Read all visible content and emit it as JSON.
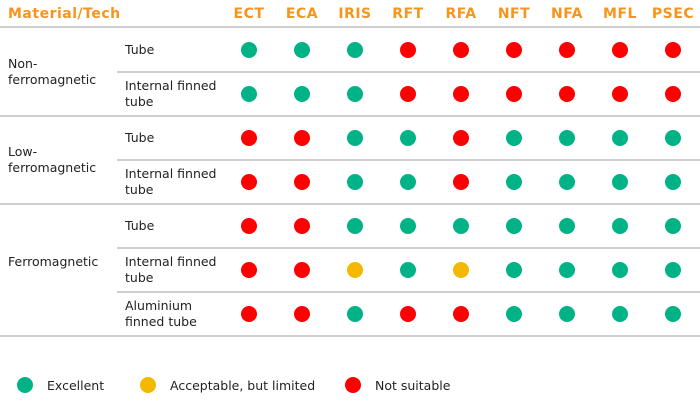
{
  "header": {
    "first": "Material/Tech",
    "columns": [
      "ECT",
      "ECA",
      "IRIS",
      "RFT",
      "RFA",
      "NFT",
      "NFA",
      "MFL",
      "PSEC"
    ]
  },
  "colors": {
    "header": "#F7941D",
    "excellent": "#00B386",
    "acceptable": "#F5B800",
    "not_suitable": "#FF0000"
  },
  "groups": [
    {
      "label": "Non-ferromagnetic",
      "rows": [
        {
          "label": "Tube",
          "ratings": [
            "E",
            "E",
            "E",
            "N",
            "N",
            "N",
            "N",
            "N",
            "N"
          ]
        },
        {
          "label": "Internal finned tube",
          "ratings": [
            "E",
            "E",
            "E",
            "N",
            "N",
            "N",
            "N",
            "N",
            "N"
          ]
        }
      ]
    },
    {
      "label": "Low-ferromagnetic",
      "rows": [
        {
          "label": "Tube",
          "ratings": [
            "N",
            "N",
            "E",
            "E",
            "N",
            "E",
            "E",
            "E",
            "E"
          ]
        },
        {
          "label": "Internal finned tube",
          "ratings": [
            "N",
            "N",
            "E",
            "E",
            "N",
            "E",
            "E",
            "E",
            "E"
          ]
        }
      ]
    },
    {
      "label": "Ferromagnetic",
      "rows": [
        {
          "label": "Tube",
          "ratings": [
            "N",
            "N",
            "E",
            "E",
            "E",
            "E",
            "E",
            "E",
            "E"
          ]
        },
        {
          "label": "Internal finned tube",
          "ratings": [
            "N",
            "N",
            "A",
            "E",
            "A",
            "E",
            "E",
            "E",
            "E"
          ]
        },
        {
          "label": "Aluminium finned tube",
          "ratings": [
            "N",
            "N",
            "E",
            "N",
            "N",
            "E",
            "E",
            "E",
            "E"
          ]
        }
      ]
    }
  ],
  "legend": [
    {
      "key": "E",
      "label": "Excellent"
    },
    {
      "key": "A",
      "label": "Acceptable, but limited"
    },
    {
      "key": "N",
      "label": "Not suitable"
    }
  ]
}
